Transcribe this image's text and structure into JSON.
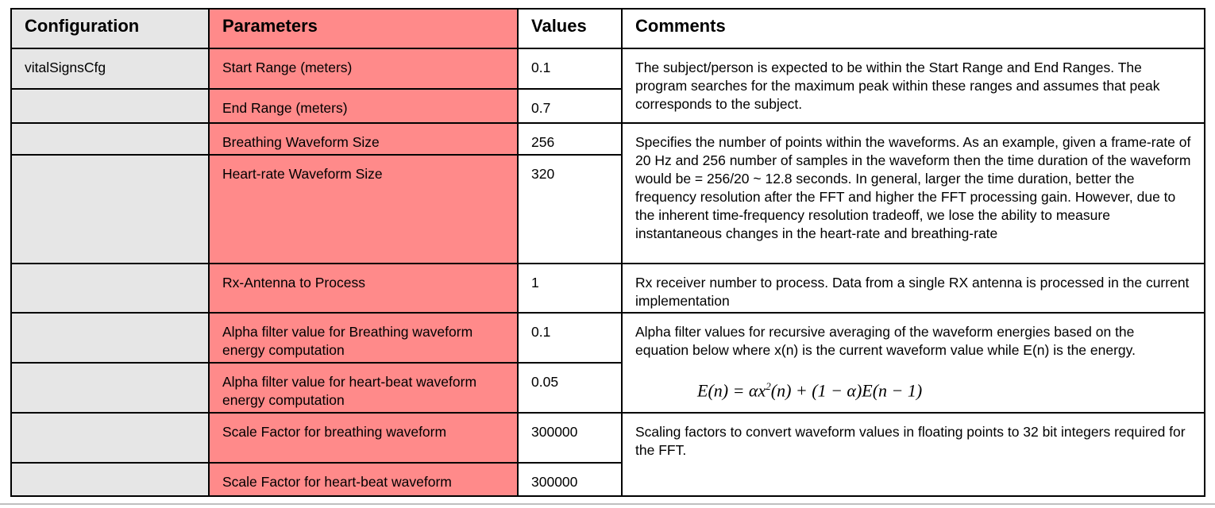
{
  "headers": {
    "configuration": "Configuration",
    "parameters": "Parameters",
    "values": "Values",
    "comments": "Comments"
  },
  "config_name": "vitalSignsCfg",
  "rows": [
    {
      "parameter": "Start Range (meters)",
      "value": "0.1"
    },
    {
      "parameter": "End Range (meters)",
      "value": "0.7"
    },
    {
      "parameter": "Breathing Waveform Size",
      "value": "256"
    },
    {
      "parameter": "Heart-rate Waveform Size",
      "value": "320"
    },
    {
      "parameter": "Rx-Antenna to Process",
      "value": "1"
    },
    {
      "parameter": "Alpha filter value for Breathing waveform energy computation",
      "value": "0.1"
    },
    {
      "parameter": "Alpha filter value for heart-beat waveform energy computation",
      "value": "0.05"
    },
    {
      "parameter": "Scale Factor for breathing waveform",
      "value": "300000"
    },
    {
      "parameter": "Scale Factor for heart-beat waveform",
      "value": "300000"
    }
  ],
  "comments": {
    "range": "The subject/person is expected to be within the Start Range and End Ranges. The program searches for the maximum peak within these ranges and assumes that peak corresponds to the subject.",
    "waveform_size": "Specifies the number of points within the waveforms. As an example, given a frame-rate of 20 Hz and 256 number of samples in the waveform then the time duration of the waveform would  be = 256/20 ~ 12.8 seconds. In general, larger the time duration, better the frequency resolution after the FFT and higher the FFT processing gain. However, due to the inherent time-frequency resolution tradeoff, we lose the ability to measure instantaneous changes in the heart-rate and breathing-rate",
    "rx_antenna": "Rx receiver number to process. Data from a single RX antenna is processed in the current implementation",
    "alpha_filter": "Alpha filter values for recursive averaging of the waveform energies based on the equation below where x(n) is the current waveform value while E(n) is the energy.",
    "alpha_formula_lhs": "E(n) = αx",
    "alpha_formula_exp": "2",
    "alpha_formula_rhs": "(n) + (1 − α)E(n − 1)",
    "scale_factor": "Scaling factors to convert waveform values in floating points to 32 bit integers required for the FFT."
  }
}
